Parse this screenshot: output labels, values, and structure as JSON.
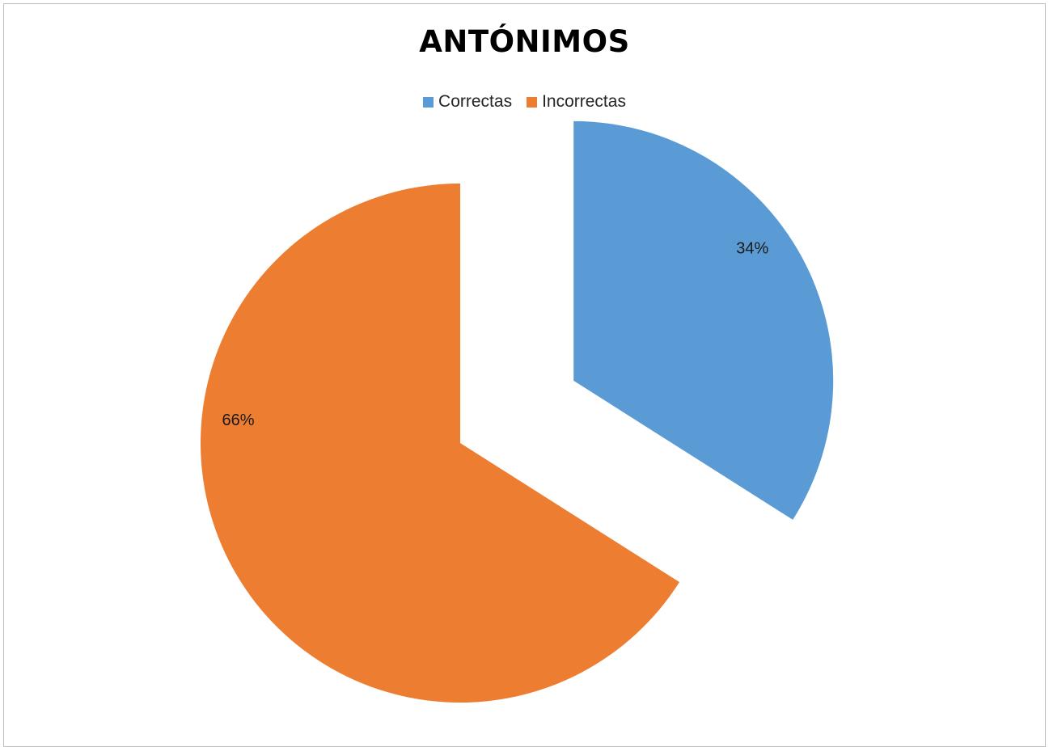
{
  "chart_data": {
    "type": "pie",
    "title": "ANTÓNIMOS",
    "categories": [
      "Correctas",
      "Incorrectas"
    ],
    "values": [
      34,
      66
    ],
    "labels": [
      "34%",
      "66%"
    ],
    "colors": [
      "#5B9BD5",
      "#ED7D31"
    ],
    "exploded": [
      "Correctas",
      "Incorrectas"
    ],
    "legend_position": "top"
  }
}
